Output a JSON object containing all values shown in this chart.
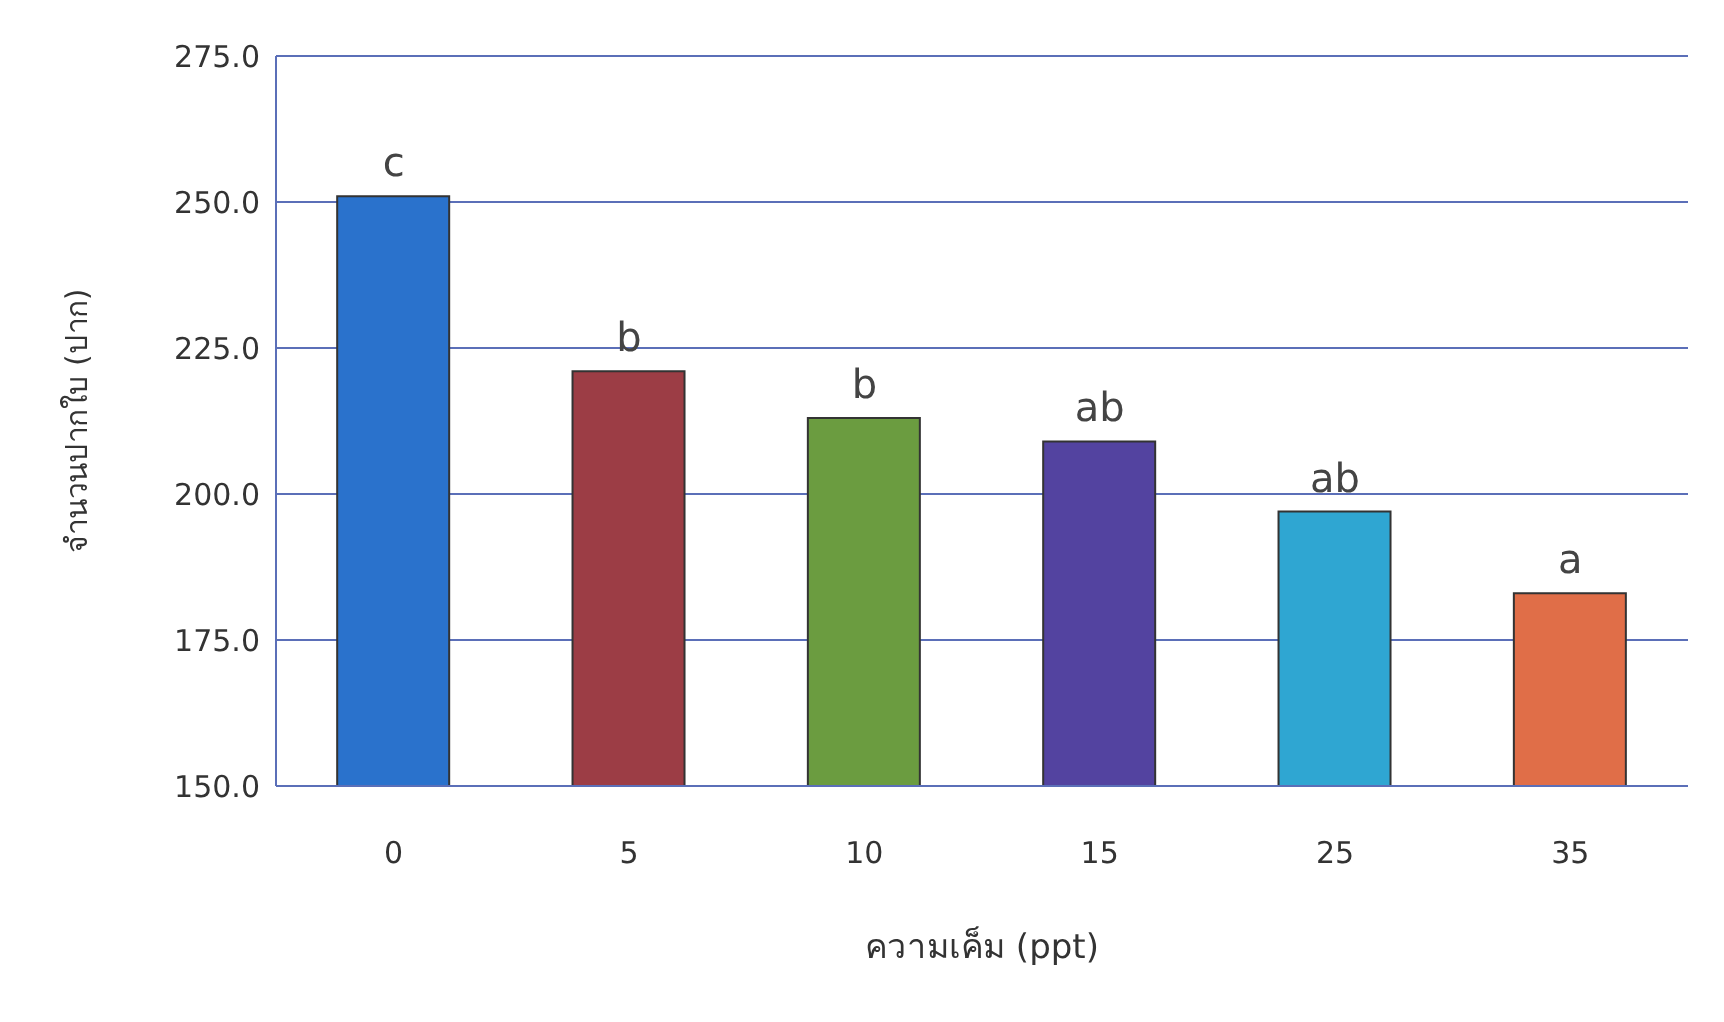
{
  "chart_data": {
    "type": "bar",
    "xlabel": "ความเค็ม (ppt)",
    "ylabel": "จำนวนปากใบ (ปาก)",
    "categories": [
      "0",
      "5",
      "10",
      "15",
      "25",
      "35"
    ],
    "values": [
      251,
      221,
      213,
      209,
      197,
      183
    ],
    "colors": [
      "#2a72cc",
      "#9c3d45",
      "#6b9c40",
      "#5343a0",
      "#2fa6d2",
      "#e06e48"
    ],
    "ylim": [
      150,
      275
    ],
    "yticks": [
      {
        "value": 150,
        "label": "150.0"
      },
      {
        "value": 175,
        "label": "175.0"
      },
      {
        "value": 200,
        "label": "200.0"
      },
      {
        "value": 225,
        "label": "225.0"
      },
      {
        "value": 250,
        "label": "250.0"
      },
      {
        "value": 275,
        "label": "275.0"
      }
    ],
    "grid": "y",
    "annotations": [
      {
        "text": "c",
        "x": "0",
        "y": 251
      },
      {
        "text": "b",
        "x": "5",
        "y": 221
      },
      {
        "text": "b",
        "x": "10",
        "y": 213
      },
      {
        "text": "ab",
        "x": "15",
        "y": 209
      },
      {
        "text": "ab",
        "x": "25",
        "y": 197
      },
      {
        "text": "a",
        "x": "35",
        "y": 183
      }
    ]
  }
}
